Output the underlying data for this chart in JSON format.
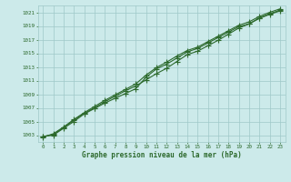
{
  "title": "Graphe pression niveau de la mer (hPa)",
  "xlim": [
    -0.5,
    23.5
  ],
  "ylim": [
    1002.0,
    1022.0
  ],
  "yticks": [
    1003,
    1005,
    1007,
    1009,
    1011,
    1013,
    1015,
    1017,
    1019,
    1021
  ],
  "xticks": [
    0,
    1,
    2,
    3,
    4,
    5,
    6,
    7,
    8,
    9,
    10,
    11,
    12,
    13,
    14,
    15,
    16,
    17,
    18,
    19,
    20,
    21,
    22,
    23
  ],
  "hours": [
    0,
    1,
    2,
    3,
    4,
    5,
    6,
    7,
    8,
    9,
    10,
    11,
    12,
    13,
    14,
    15,
    16,
    17,
    18,
    19,
    20,
    21,
    22,
    23
  ],
  "line1": [
    1002.8,
    1003.1,
    1004.1,
    1005.2,
    1006.2,
    1007.0,
    1007.9,
    1008.7,
    1009.5,
    1010.2,
    1011.1,
    1012.0,
    1012.8,
    1013.8,
    1014.8,
    1015.3,
    1016.1,
    1016.9,
    1017.8,
    1018.7,
    1019.3,
    1020.2,
    1020.8,
    1021.3
  ],
  "line2": [
    1002.8,
    1003.0,
    1004.0,
    1005.0,
    1006.1,
    1006.9,
    1007.7,
    1008.4,
    1009.1,
    1009.8,
    1011.5,
    1012.7,
    1013.4,
    1014.3,
    1015.2,
    1015.7,
    1016.5,
    1017.3,
    1018.1,
    1018.9,
    1019.3,
    1020.1,
    1020.7,
    1021.2
  ],
  "line3": [
    1002.7,
    1003.2,
    1004.2,
    1005.3,
    1006.3,
    1007.2,
    1008.1,
    1008.9,
    1009.7,
    1010.5,
    1011.8,
    1012.9,
    1013.7,
    1014.6,
    1015.4,
    1015.9,
    1016.7,
    1017.5,
    1018.3,
    1019.1,
    1019.6,
    1020.4,
    1021.0,
    1021.5
  ],
  "line_color": "#2d6a2d",
  "bg_color": "#cceaea",
  "grid_color": "#9fc8c8",
  "title_color": "#2d6a2d",
  "marker": "+",
  "marker_size": 4,
  "linewidth": 0.8
}
